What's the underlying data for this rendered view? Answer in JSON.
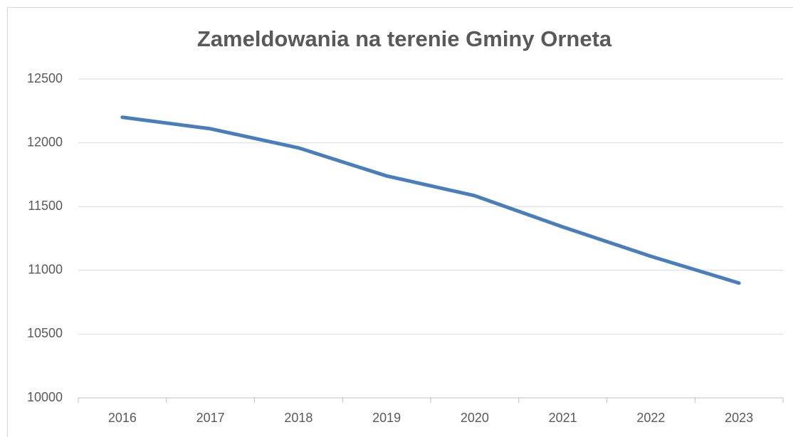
{
  "chart_data": {
    "type": "line",
    "title": "Zameldowania na terenie Gminy Orneta",
    "categories": [
      "2016",
      "2017",
      "2018",
      "2019",
      "2020",
      "2021",
      "2022",
      "2023"
    ],
    "series": [
      {
        "name": "Zameldowania",
        "color": "#4a7ebb",
        "values": [
          12200,
          12110,
          11960,
          11740,
          11585,
          11340,
          11110,
          10900
        ]
      }
    ],
    "ylim": [
      10000,
      12500
    ],
    "yticks": [
      10000,
      10500,
      11000,
      11500,
      12000,
      12500
    ],
    "grid": true,
    "legend": false
  }
}
